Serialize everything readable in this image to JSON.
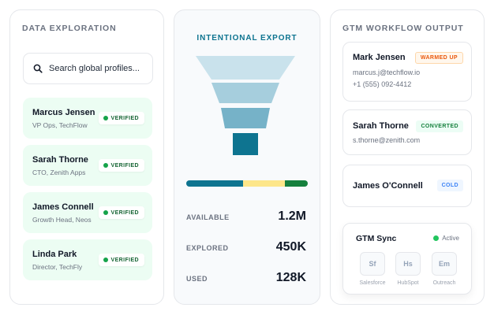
{
  "exploration": {
    "title": "DATA EXPLORATION",
    "search_placeholder": "Search global profiles...",
    "profiles": [
      {
        "name": "Marcus Jensen",
        "role": "VP Ops, TechFlow",
        "badge": "VERIFIED"
      },
      {
        "name": "Sarah Thorne",
        "role": "CTO, Zenith Apps",
        "badge": "VERIFIED"
      },
      {
        "name": "James Connell",
        "role": "Growth Head, Neos",
        "badge": "VERIFIED"
      },
      {
        "name": "Linda Park",
        "role": "Director, TechFly",
        "badge": "VERIFIED"
      }
    ]
  },
  "export": {
    "title": "INTENTIONAL EXPORT",
    "funnel_colors": [
      "#c9e2ec",
      "#a6cedd",
      "#76b2c8",
      "#0e7490"
    ],
    "distribution": [
      {
        "fraction": 0.47,
        "color": "#0e7490"
      },
      {
        "fraction": 0.34,
        "color": "#fde68a"
      },
      {
        "fraction": 0.19,
        "color": "#15803d"
      }
    ],
    "stats": [
      {
        "label": "AVAILABLE",
        "value": "1.2M"
      },
      {
        "label": "EXPLORED",
        "value": "450K"
      },
      {
        "label": "USED",
        "value": "128K"
      }
    ]
  },
  "gtm": {
    "title": "GTM WORKFLOW OUTPUT",
    "contacts": [
      {
        "name": "Mark Jensen",
        "status": "WARMED UP",
        "email": "marcus.j@techflow.io",
        "phone": "+1 (555) 092-4412"
      },
      {
        "name": "Sarah Thorne",
        "status": "CONVERTED",
        "email": "s.thorne@zenith.com"
      },
      {
        "name": "James O'Connell",
        "status": "COLD"
      }
    ],
    "sync": {
      "title": "GTM Sync",
      "status": "Active",
      "integrations": [
        {
          "abbr": "Sf",
          "label": "Salesforce"
        },
        {
          "abbr": "Hs",
          "label": "HubSpot"
        },
        {
          "abbr": "Em",
          "label": "Outreach"
        }
      ]
    }
  }
}
